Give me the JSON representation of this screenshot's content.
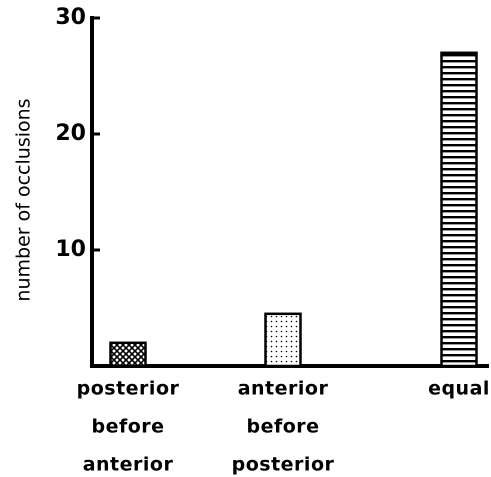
{
  "chart_data": {
    "type": "bar",
    "ylabel": "number of occlusions",
    "categories": [
      [
        "posterior",
        "before",
        "anterior"
      ],
      [
        "anterior",
        "before",
        "posterior"
      ],
      [
        "equal"
      ]
    ],
    "values": [
      2,
      4.5,
      27
    ],
    "color": "#000000",
    "ylim": [
      0,
      30
    ],
    "yticks": [
      10,
      20,
      30
    ],
    "grid": false
  }
}
